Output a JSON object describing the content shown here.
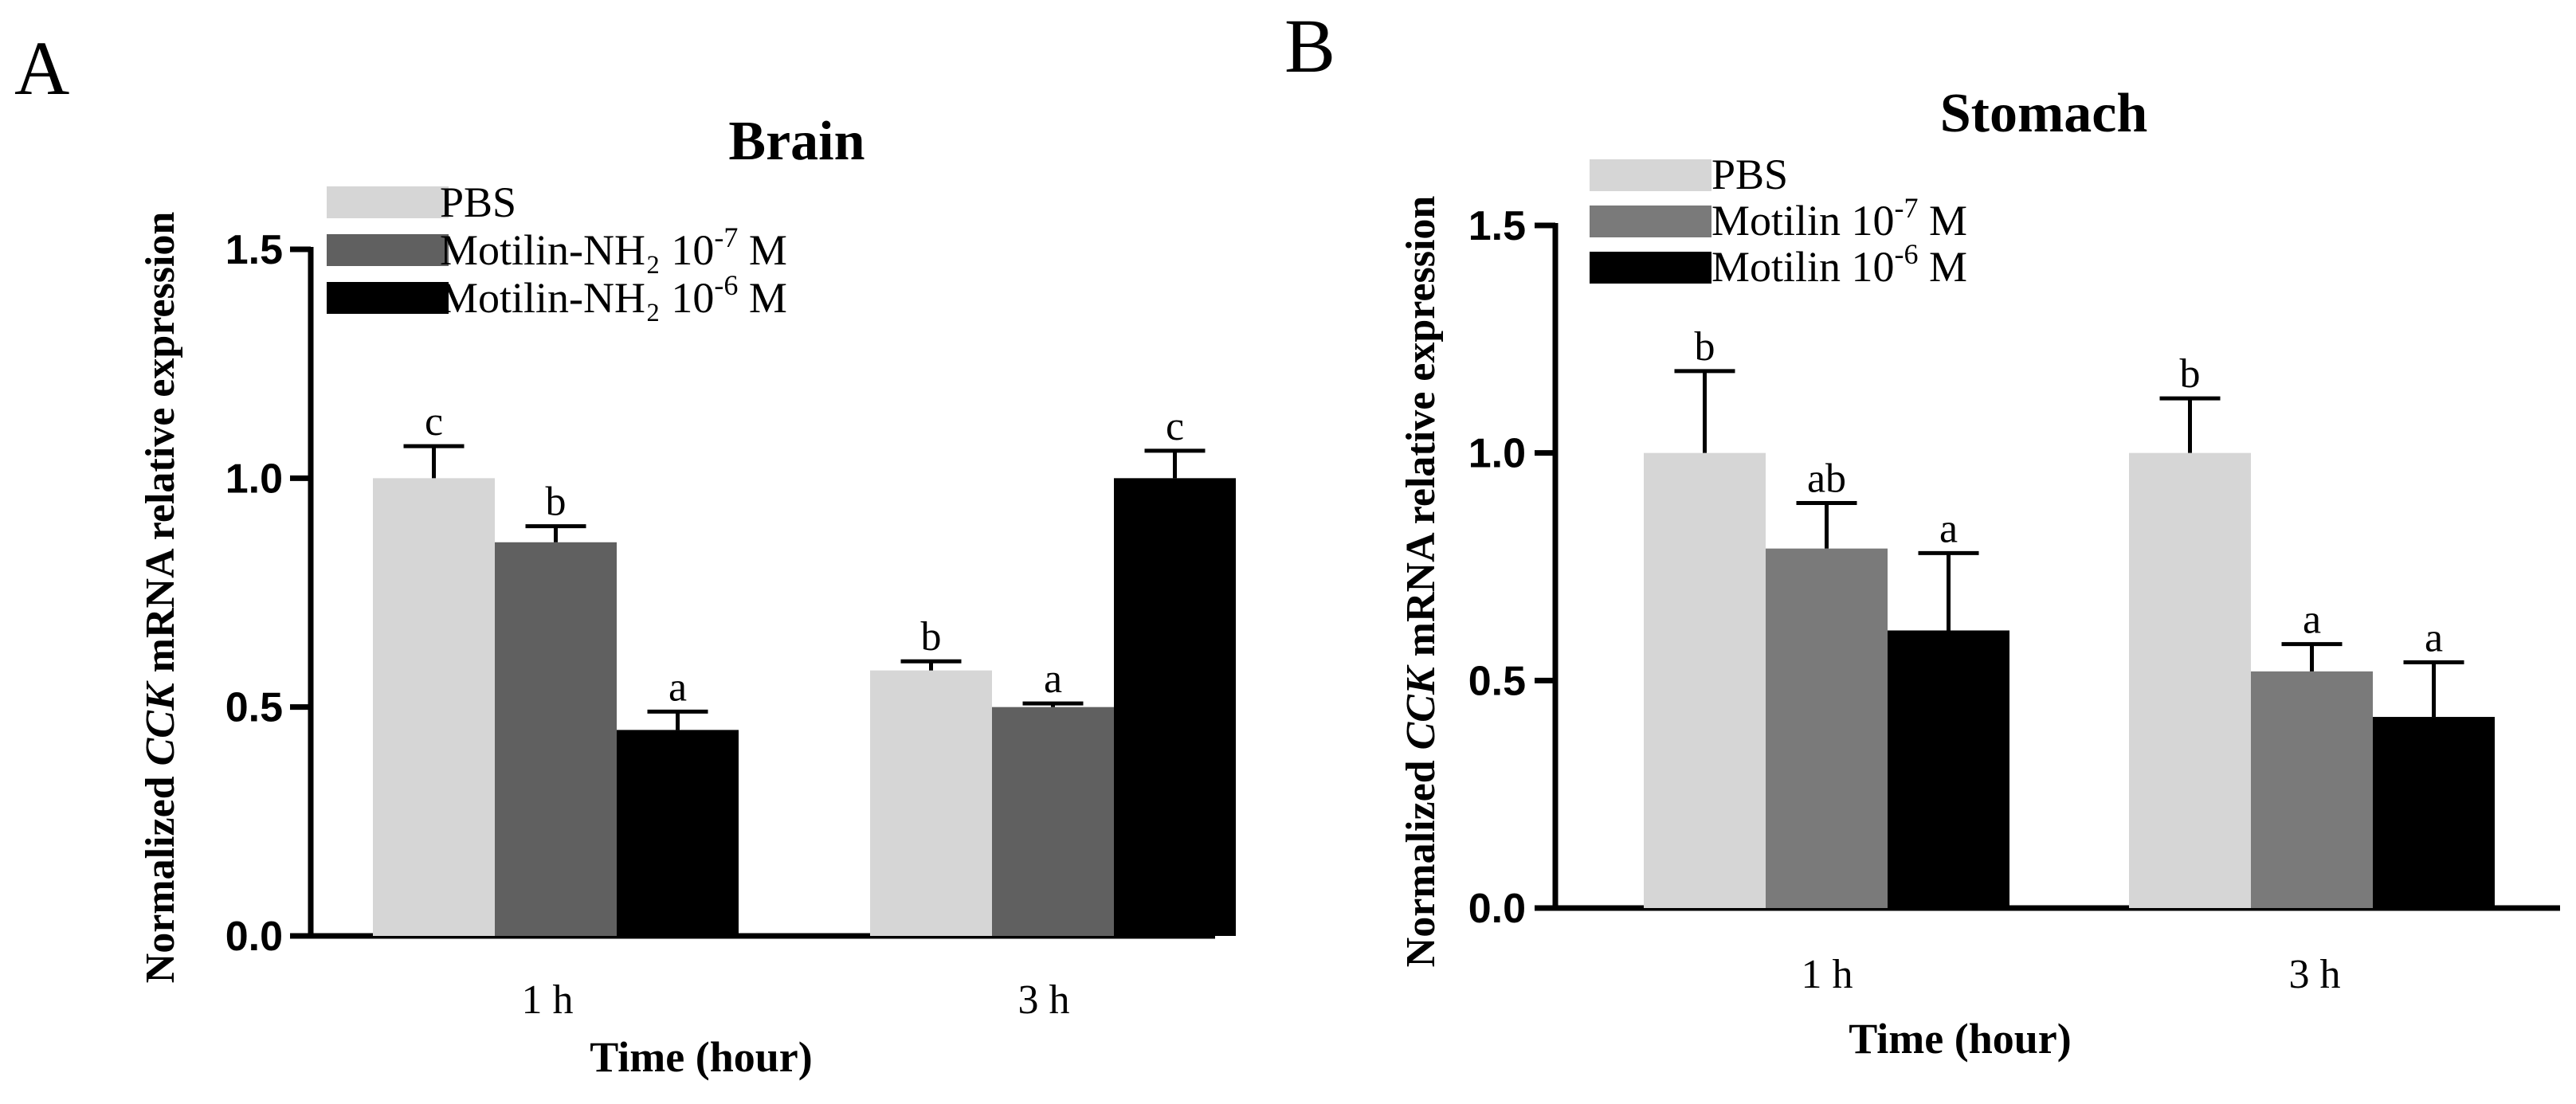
{
  "chart_data": [
    {
      "type": "bar",
      "panel": "A",
      "title": "Brain",
      "xlabel": "Time (hour)",
      "ylabel_prefix": "Normalized",
      "ylabel_gene": "CCK",
      "ylabel_suffix": "mRNA relative expression",
      "ylim": [
        0,
        1.5
      ],
      "yticks": [
        "0.0",
        "0.5",
        "1.0",
        "1.5"
      ],
      "categories": [
        "1 h",
        "3 h"
      ],
      "series": [
        {
          "name": "PBS",
          "legend_base": "PBS",
          "legend_conc": "",
          "legend_exp": "",
          "legend_unit": "",
          "color": "#d6d6d6",
          "values": [
            1.0,
            0.58
          ],
          "errors": [
            0.07,
            0.02
          ],
          "labels": [
            "c",
            "b"
          ]
        },
        {
          "name": "Motilin-NH₂ 10⁻⁷ M",
          "legend_base": "Motilin-NH₂ 10",
          "legend_conc": "",
          "legend_exp": "-7",
          "legend_unit": " M",
          "color": "#606060",
          "values": [
            0.86,
            0.5
          ],
          "errors": [
            0.035,
            0.008
          ],
          "labels": [
            "b",
            "a"
          ]
        },
        {
          "name": "Motilin-NH₂ 10⁻⁶ M",
          "legend_base": "Motilin-NH₂ 10",
          "legend_conc": "",
          "legend_exp": "-6",
          "legend_unit": " M",
          "color": "#000000",
          "values": [
            0.45,
            1.0
          ],
          "errors": [
            0.04,
            0.06
          ],
          "labels": [
            "a",
            "c"
          ]
        }
      ]
    },
    {
      "type": "bar",
      "panel": "B",
      "title": "Stomach",
      "xlabel": "Time (hour)",
      "ylabel_prefix": "Normalized",
      "ylabel_gene": "CCK",
      "ylabel_suffix": "mRNA relative expression",
      "ylim": [
        0,
        1.5
      ],
      "yticks": [
        "0.0",
        "0.5",
        "1.0",
        "1.5"
      ],
      "categories": [
        "1 h",
        "3 h"
      ],
      "series": [
        {
          "name": "PBS",
          "legend_base": "PBS",
          "legend_conc": "",
          "legend_exp": "",
          "legend_unit": "",
          "color": "#d6d6d6",
          "values": [
            1.0,
            1.0
          ],
          "errors": [
            0.18,
            0.12
          ],
          "labels": [
            "b",
            "b"
          ]
        },
        {
          "name": "Motilin 10⁻⁷ M",
          "legend_base": "Motilin 10",
          "legend_conc": "",
          "legend_exp": "-7",
          "legend_unit": " M",
          "color": "#7a7a7a",
          "values": [
            0.79,
            0.52
          ],
          "errors": [
            0.1,
            0.06
          ],
          "labels": [
            "ab",
            "a"
          ]
        },
        {
          "name": "Motilin 10⁻⁶ M",
          "legend_base": "Motilin 10",
          "legend_conc": "",
          "legend_exp": "-6",
          "legend_unit": " M",
          "color": "#000000",
          "values": [
            0.61,
            0.42
          ],
          "errors": [
            0.17,
            0.12
          ],
          "labels": [
            "a",
            "a"
          ]
        }
      ]
    }
  ]
}
